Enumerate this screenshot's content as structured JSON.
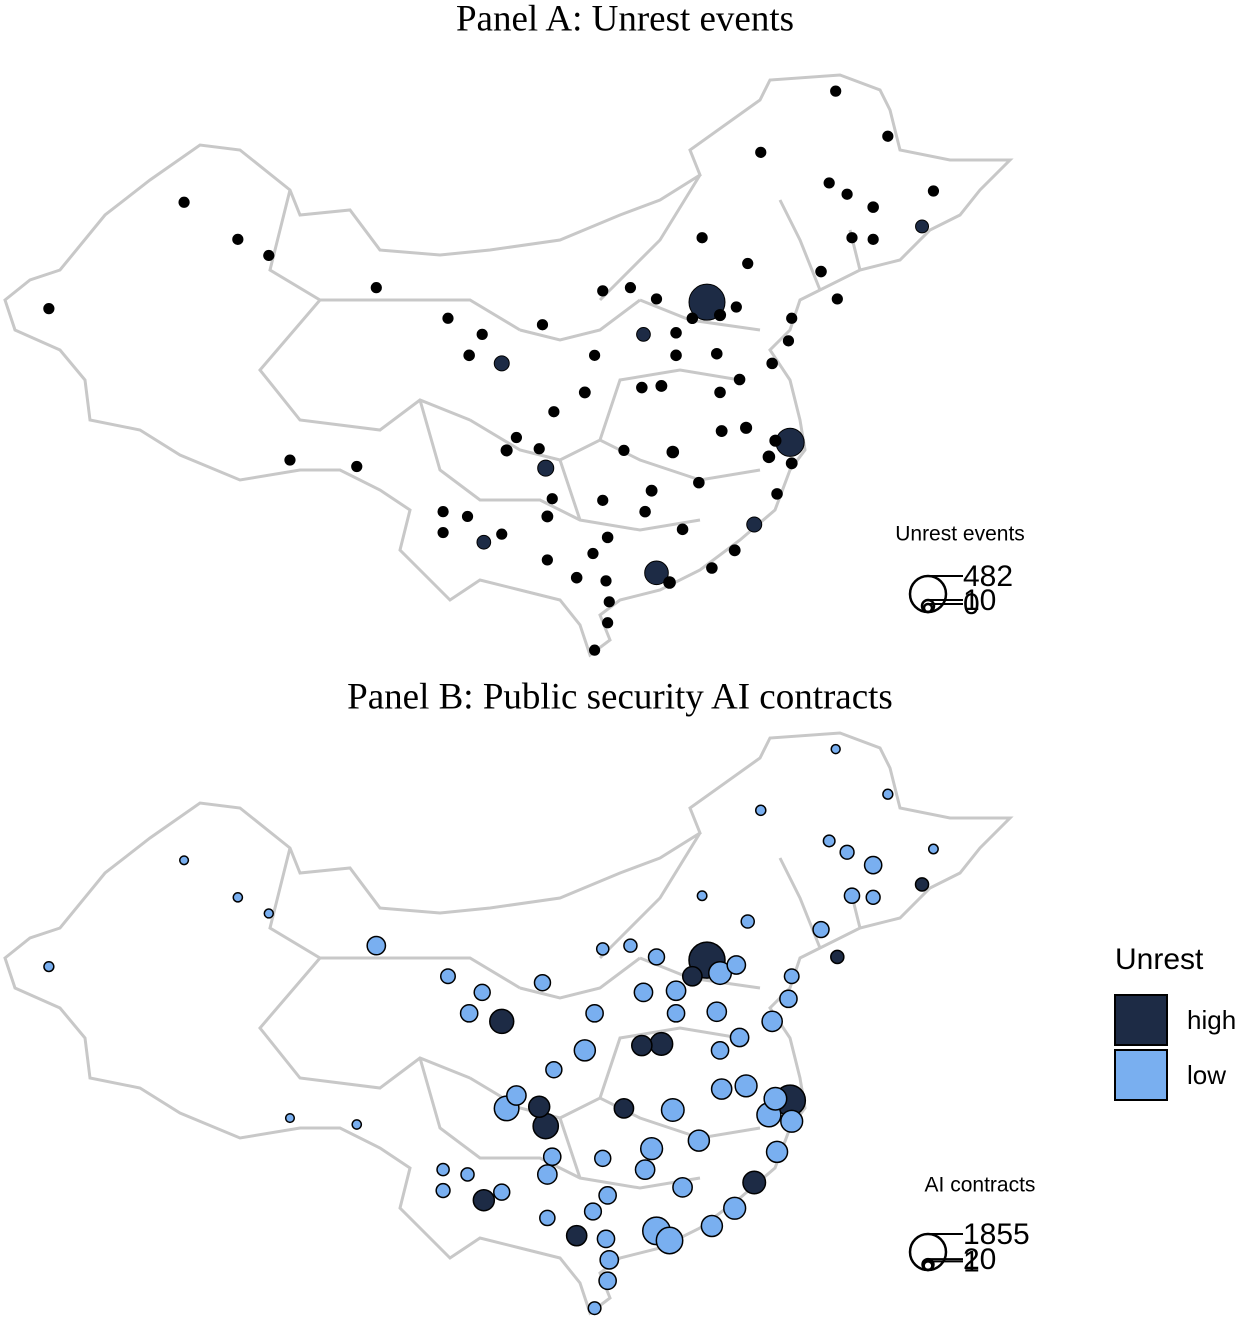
{
  "panels": [
    {
      "title": "Panel A: Unrest events",
      "size_legend": {
        "title": "Unrest events",
        "values": [
          482,
          10,
          0
        ]
      },
      "points": [
        [
          116.4,
          39.9,
          482
        ],
        [
          117.2,
          39.1,
          6
        ],
        [
          121.5,
          31.2,
          250
        ],
        [
          113.3,
          23.1,
          150
        ],
        [
          114.1,
          22.5,
          8
        ],
        [
          106.5,
          29.6,
          40
        ],
        [
          104.1,
          30.7,
          6
        ],
        [
          114.3,
          30.6,
          8
        ],
        [
          108.9,
          34.3,
          5
        ],
        [
          118.8,
          32.1,
          6
        ],
        [
          120.2,
          30.3,
          8
        ],
        [
          113.6,
          34.7,
          5
        ],
        [
          117.0,
          36.7,
          4
        ],
        [
          120.4,
          36.1,
          4
        ],
        [
          114.5,
          38.0,
          4
        ],
        [
          112.5,
          37.9,
          20
        ],
        [
          111.7,
          40.8,
          3
        ],
        [
          110.0,
          40.6,
          3
        ],
        [
          123.4,
          41.8,
          4
        ],
        [
          121.6,
          38.9,
          3
        ],
        [
          125.3,
          43.9,
          3
        ],
        [
          126.6,
          45.8,
          4
        ],
        [
          123.9,
          47.3,
          3
        ],
        [
          129.6,
          44.6,
          15
        ],
        [
          130.3,
          46.8,
          3
        ],
        [
          125.0,
          46.6,
          3
        ],
        [
          127.5,
          50.2,
          3
        ],
        [
          124.3,
          53.0,
          3
        ],
        [
          119.7,
          49.2,
          3
        ],
        [
          118.9,
          42.3,
          3
        ],
        [
          116.1,
          43.9,
          3
        ],
        [
          103.8,
          36.1,
          30
        ],
        [
          101.8,
          36.6,
          4
        ],
        [
          106.3,
          38.5,
          3
        ],
        [
          87.6,
          43.8,
          3
        ],
        [
          76.0,
          39.5,
          3
        ],
        [
          84.3,
          46.1,
          3
        ],
        [
          90.8,
          30.1,
          3
        ],
        [
          94.9,
          29.7,
          3
        ],
        [
          89.5,
          42.8,
          3
        ],
        [
          96.1,
          40.8,
          3
        ],
        [
          100.5,
          38.9,
          3
        ],
        [
          102.6,
          37.9,
          3
        ],
        [
          102.7,
          25.0,
          20
        ],
        [
          106.6,
          26.6,
          5
        ],
        [
          108.4,
          22.8,
          4
        ],
        [
          110.3,
          20.0,
          3
        ],
        [
          109.5,
          18.3,
          3
        ],
        [
          113.0,
          28.2,
          5
        ],
        [
          115.9,
          28.7,
          4
        ],
        [
          119.3,
          26.1,
          30
        ],
        [
          118.1,
          24.5,
          5
        ],
        [
          117.3,
          31.9,
          5
        ],
        [
          120.6,
          31.3,
          6
        ],
        [
          120.7,
          28.0,
          4
        ],
        [
          121.6,
          29.9,
          5
        ],
        [
          117.2,
          34.3,
          4
        ],
        [
          112.4,
          34.6,
          4
        ],
        [
          111.3,
          30.7,
          3
        ],
        [
          110.3,
          25.3,
          4
        ],
        [
          109.4,
          24.3,
          3
        ],
        [
          100.2,
          25.6,
          3
        ],
        [
          100.2,
          26.9,
          3
        ],
        [
          101.7,
          26.6,
          3
        ],
        [
          104.7,
          31.5,
          3
        ],
        [
          106.1,
          30.8,
          3
        ],
        [
          107.0,
          33.1,
          3
        ],
        [
          109.5,
          36.6,
          3
        ],
        [
          113.3,
          40.1,
          3
        ],
        [
          115.5,
          38.9,
          4
        ],
        [
          118.2,
          39.6,
          3
        ],
        [
          121.4,
          37.5,
          3
        ],
        [
          118.4,
          35.1,
          4
        ],
        [
          114.5,
          36.6,
          4
        ],
        [
          114.9,
          25.8,
          4
        ],
        [
          116.7,
          23.4,
          4
        ],
        [
          110.4,
          21.3,
          3
        ],
        [
          110.2,
          22.6,
          3
        ],
        [
          112.6,
          26.9,
          4
        ],
        [
          110.0,
          27.6,
          3
        ],
        [
          106.9,
          27.7,
          3
        ],
        [
          103.8,
          25.5,
          3
        ],
        [
          106.6,
          23.9,
          3
        ],
        [
          126.6,
          43.8,
          3
        ],
        [
          124.4,
          40.1,
          3
        ]
      ]
    },
    {
      "title": "Panel B: Public security AI contracts",
      "size_legend": {
        "title": "AI contracts",
        "values": [
          1855,
          20,
          1
        ]
      },
      "points": [
        [
          116.4,
          39.9,
          1855,
          "high"
        ],
        [
          117.2,
          39.1,
          500,
          "low"
        ],
        [
          121.5,
          31.2,
          1200,
          "high"
        ],
        [
          113.3,
          23.1,
          900,
          "low"
        ],
        [
          114.1,
          22.5,
          800,
          "low"
        ],
        [
          106.5,
          29.6,
          700,
          "high"
        ],
        [
          104.1,
          30.7,
          650,
          "low"
        ],
        [
          114.3,
          30.6,
          500,
          "low"
        ],
        [
          108.9,
          34.3,
          400,
          "low"
        ],
        [
          118.8,
          32.1,
          450,
          "low"
        ],
        [
          120.2,
          30.3,
          600,
          "low"
        ],
        [
          113.6,
          34.7,
          500,
          "high"
        ],
        [
          117.0,
          36.7,
          300,
          "low"
        ],
        [
          120.4,
          36.1,
          350,
          "low"
        ],
        [
          114.5,
          38.0,
          300,
          "low"
        ],
        [
          112.5,
          37.9,
          250,
          "low"
        ],
        [
          111.7,
          40.8,
          60,
          "low"
        ],
        [
          110.0,
          40.6,
          40,
          "low"
        ],
        [
          123.4,
          41.8,
          150,
          "low"
        ],
        [
          121.6,
          38.9,
          100,
          "low"
        ],
        [
          125.3,
          43.9,
          120,
          "low"
        ],
        [
          126.6,
          45.8,
          200,
          "low"
        ],
        [
          123.9,
          47.3,
          30,
          "low"
        ],
        [
          129.6,
          44.6,
          60,
          "high"
        ],
        [
          130.3,
          46.8,
          5,
          "low"
        ],
        [
          125.0,
          46.6,
          80,
          "low"
        ],
        [
          127.5,
          50.2,
          8,
          "low"
        ],
        [
          124.3,
          53.0,
          2,
          "low"
        ],
        [
          119.7,
          49.2,
          10,
          "low"
        ],
        [
          118.9,
          42.3,
          60,
          "low"
        ],
        [
          116.1,
          43.9,
          5,
          "low"
        ],
        [
          103.8,
          36.1,
          600,
          "high"
        ],
        [
          101.8,
          36.6,
          200,
          "low"
        ],
        [
          106.3,
          38.5,
          150,
          "low"
        ],
        [
          87.6,
          43.8,
          3,
          "low"
        ],
        [
          76.0,
          39.5,
          8,
          "low"
        ],
        [
          84.3,
          46.1,
          1,
          "low"
        ],
        [
          90.8,
          30.1,
          1,
          "low"
        ],
        [
          94.9,
          29.7,
          3,
          "low"
        ],
        [
          89.5,
          42.8,
          2,
          "low"
        ],
        [
          96.1,
          40.8,
          250,
          "low"
        ],
        [
          100.5,
          38.9,
          100,
          "low"
        ],
        [
          102.6,
          37.9,
          150,
          "low"
        ],
        [
          102.7,
          25.0,
          400,
          "high"
        ],
        [
          106.6,
          26.6,
          300,
          "low"
        ],
        [
          108.4,
          22.8,
          350,
          "high"
        ],
        [
          110.3,
          20.0,
          200,
          "low"
        ],
        [
          109.5,
          18.3,
          50,
          "low"
        ],
        [
          113.0,
          28.2,
          450,
          "low"
        ],
        [
          115.9,
          28.7,
          400,
          "low"
        ],
        [
          119.3,
          26.1,
          500,
          "high"
        ],
        [
          118.1,
          24.5,
          450,
          "low"
        ],
        [
          117.3,
          31.9,
          350,
          "low"
        ],
        [
          120.6,
          31.3,
          500,
          "low"
        ],
        [
          120.7,
          28.0,
          400,
          "low"
        ],
        [
          121.6,
          29.9,
          450,
          "low"
        ],
        [
          117.2,
          34.3,
          200,
          "low"
        ],
        [
          112.4,
          34.6,
          350,
          "high"
        ],
        [
          111.3,
          30.7,
          300,
          "high"
        ],
        [
          110.3,
          25.3,
          200,
          "low"
        ],
        [
          109.4,
          24.3,
          180,
          "low"
        ],
        [
          100.2,
          25.6,
          80,
          "low"
        ],
        [
          100.2,
          26.9,
          40,
          "low"
        ],
        [
          101.7,
          26.6,
          60,
          "low"
        ],
        [
          104.7,
          31.5,
          300,
          "low"
        ],
        [
          106.1,
          30.8,
          400,
          "high"
        ],
        [
          107.0,
          33.1,
          150,
          "low"
        ],
        [
          109.5,
          36.6,
          200,
          "low"
        ],
        [
          113.3,
          40.1,
          150,
          "low"
        ],
        [
          115.5,
          38.9,
          300,
          "high"
        ],
        [
          118.2,
          39.6,
          250,
          "low"
        ],
        [
          121.4,
          37.5,
          200,
          "low"
        ],
        [
          118.4,
          35.1,
          250,
          "low"
        ],
        [
          114.5,
          36.6,
          200,
          "low"
        ],
        [
          114.9,
          25.8,
          300,
          "low"
        ],
        [
          116.7,
          23.4,
          400,
          "low"
        ],
        [
          110.4,
          21.3,
          250,
          "low"
        ],
        [
          110.2,
          22.6,
          200,
          "low"
        ],
        [
          112.6,
          26.9,
          300,
          "low"
        ],
        [
          110.0,
          27.6,
          150,
          "low"
        ],
        [
          106.9,
          27.7,
          200,
          "low"
        ],
        [
          103.8,
          25.5,
          150,
          "low"
        ],
        [
          106.6,
          23.9,
          120,
          "low"
        ],
        [
          126.6,
          43.8,
          80,
          "low"
        ],
        [
          124.4,
          40.1,
          60,
          "high"
        ]
      ]
    }
  ],
  "color_legend": {
    "title": "Unrest",
    "items": [
      {
        "label": "high",
        "color": "#1d2b45"
      },
      {
        "label": "low",
        "color": "#79aff0"
      }
    ]
  }
}
